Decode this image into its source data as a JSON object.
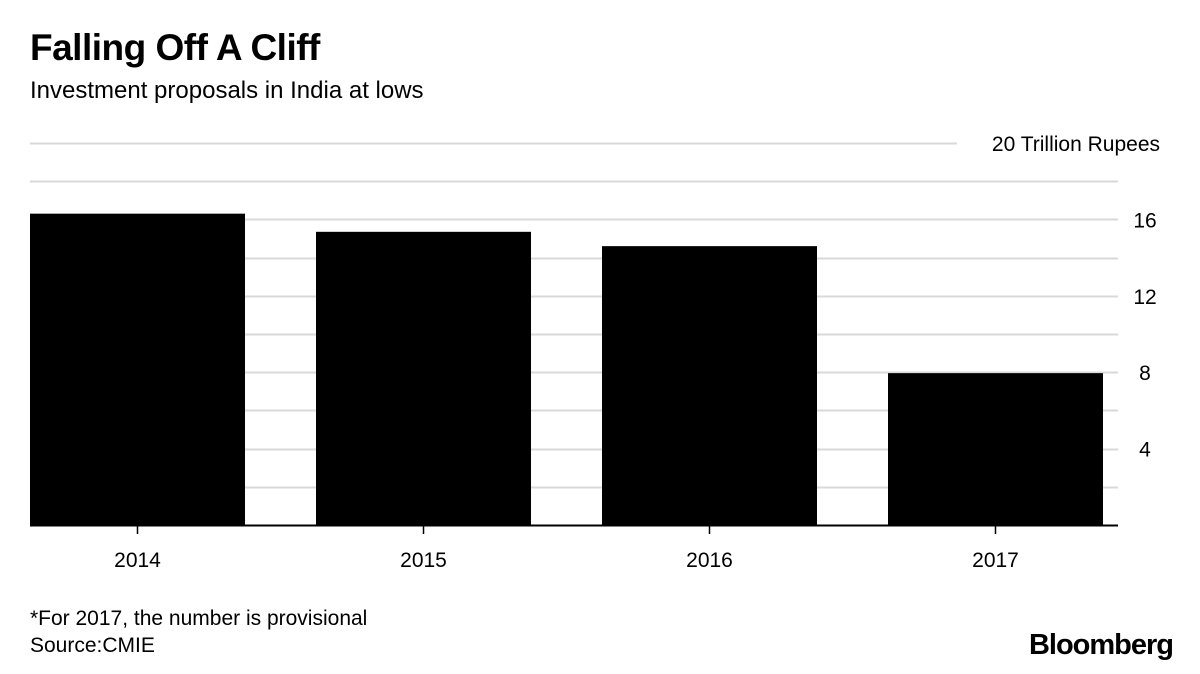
{
  "header": {
    "title": "Falling Off A Cliff",
    "subtitle": "Investment proposals in India at lows"
  },
  "chart_data": {
    "type": "bar",
    "title": "Falling Off A Cliff",
    "subtitle": "Investment proposals in India at lows",
    "categories": [
      "2014",
      "2015",
      "2016",
      "2017"
    ],
    "values": [
      16.3,
      15.35,
      14.6,
      7.95
    ],
    "unit_label": "20 Trillion Rupees",
    "y_ticks": [
      {
        "value": 4,
        "label": "4"
      },
      {
        "value": 8,
        "label": "8"
      },
      {
        "value": 12,
        "label": "12"
      },
      {
        "value": 16,
        "label": "16"
      }
    ],
    "ylim": [
      0,
      20
    ],
    "grid": true,
    "y_axis_side": "right",
    "bar_color": "#000000",
    "grid_color": "#d9d9d9"
  },
  "footer": {
    "note": "*For 2017, the number is provisional",
    "source": "Source:CMIE",
    "logo": "Bloomberg"
  }
}
